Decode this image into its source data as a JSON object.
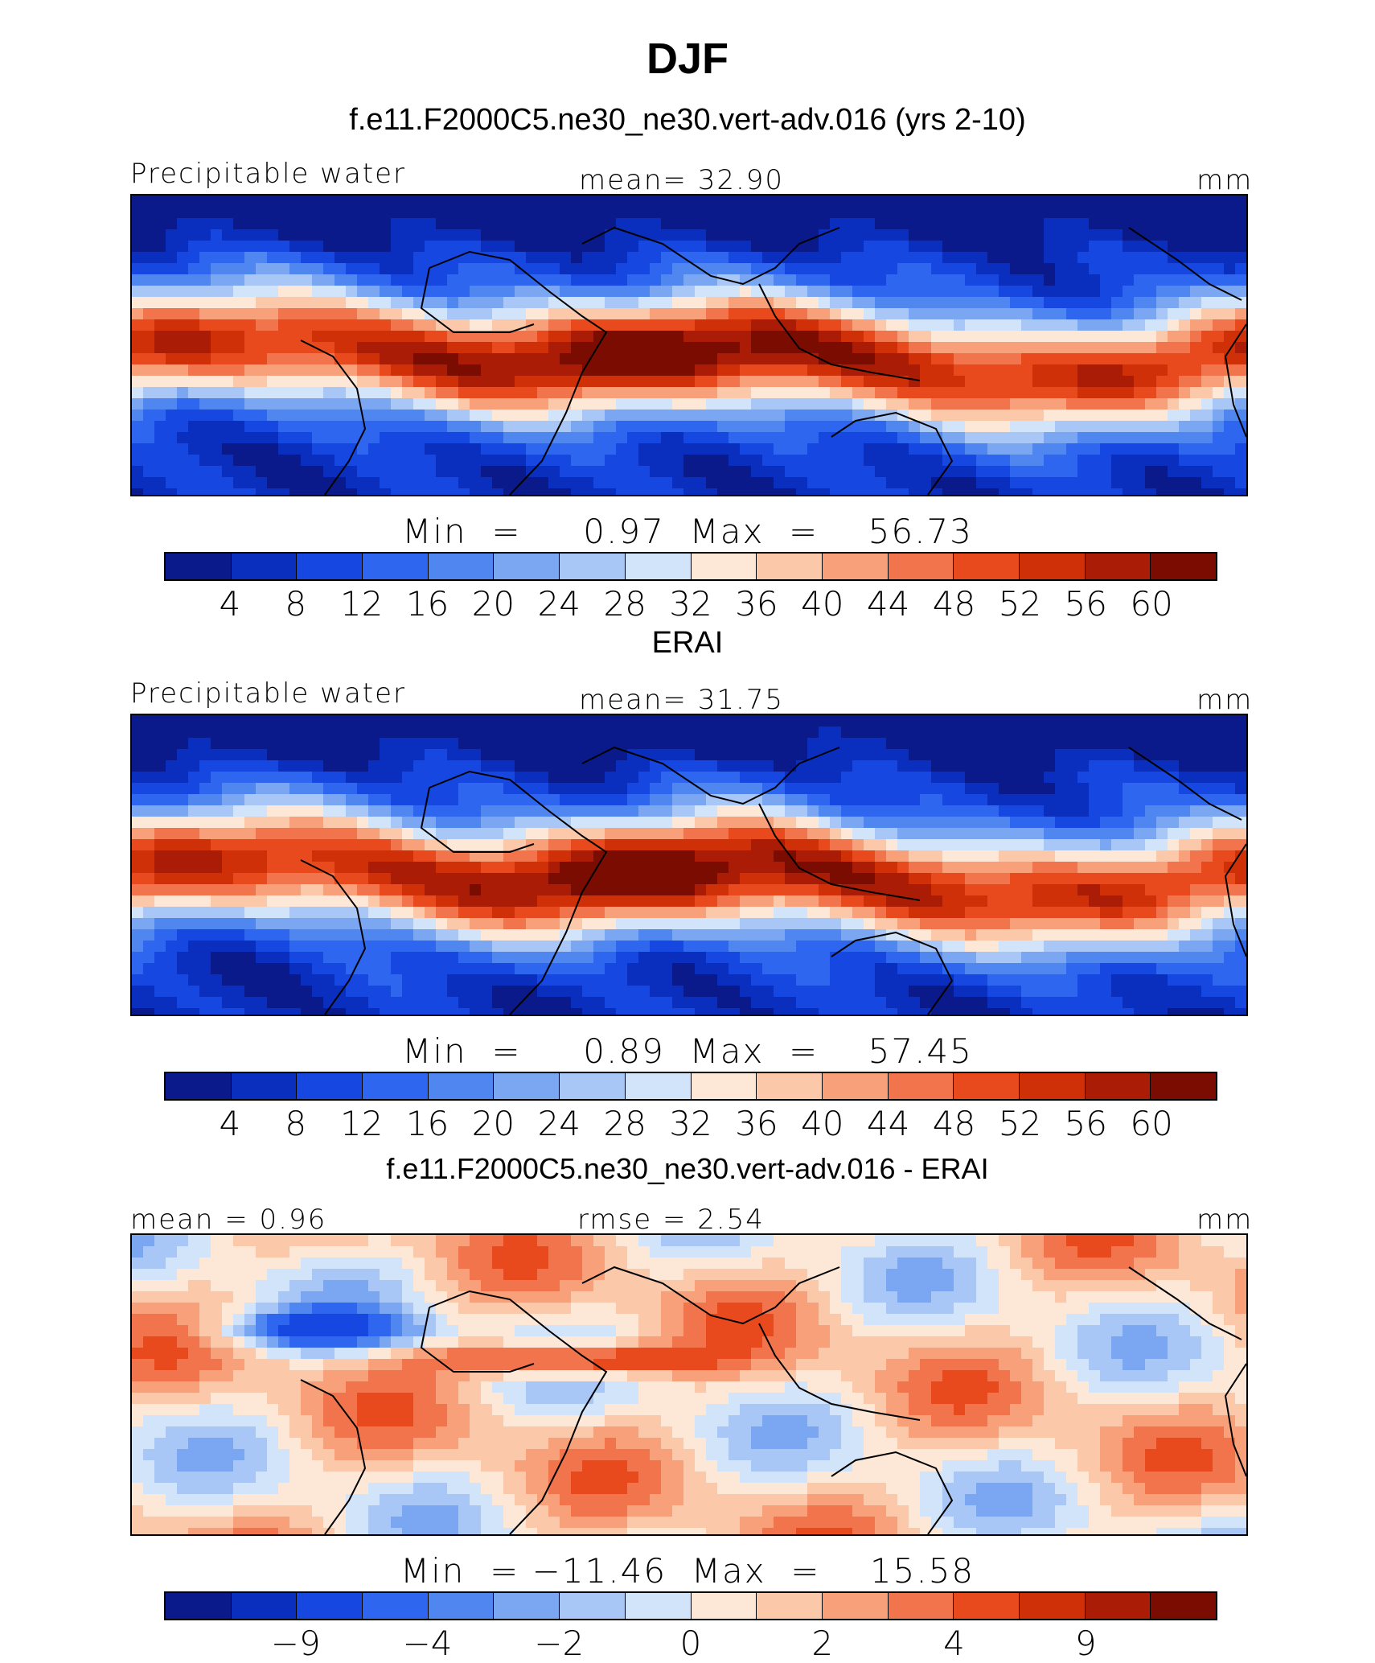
{
  "title": "DJF",
  "case_title": "f.e11.F2000C5.ne30_ne30.vert-adv.016 (yrs 2-10)",
  "colors": [
    "#0a1a8a",
    "#0a2fbf",
    "#1647e0",
    "#2e66f0",
    "#4f86f0",
    "#7aa6f2",
    "#a8c6f6",
    "#d2e4fa",
    "#fde8d8",
    "#fbc8aa",
    "#f7a07a",
    "#f2744c",
    "#e84a1e",
    "#d03008",
    "#ab1c06",
    "#7a0c02"
  ],
  "chart_data": [
    {
      "type": "heatmap",
      "panel_title": "",
      "left_label": "Precipitable water",
      "center_label": "mean=   32.90",
      "units": "mm",
      "minmax": "Min  =     0.97  Max  =    56.73",
      "field": "model",
      "levels": [
        "4",
        "8",
        "12",
        "16",
        "20",
        "24",
        "28",
        "32",
        "36",
        "40",
        "44",
        "48",
        "52",
        "56",
        "60"
      ]
    },
    {
      "type": "heatmap",
      "panel_title": "ERAI",
      "left_label": "Precipitable water",
      "center_label": "mean=   31.75",
      "units": "mm",
      "minmax": "Min  =     0.89  Max  =    57.45",
      "field": "obs",
      "levels": [
        "4",
        "8",
        "12",
        "16",
        "20",
        "24",
        "28",
        "32",
        "36",
        "40",
        "44",
        "48",
        "52",
        "56",
        "60"
      ]
    },
    {
      "type": "heatmap",
      "panel_title": "f.e11.F2000C5.ne30_ne30.vert-adv.016 - ERAI",
      "left_label": "mean  =     0.96",
      "center_label": "rmse  =     2.54",
      "units": "mm",
      "minmax": "Min  = −11.46  Max  =    15.58",
      "field": "diff",
      "levels": [
        "",
        "−9",
        "",
        "−4",
        "",
        "−2",
        "",
        "0",
        "",
        "2",
        "",
        "4",
        "",
        "9",
        ""
      ]
    }
  ]
}
